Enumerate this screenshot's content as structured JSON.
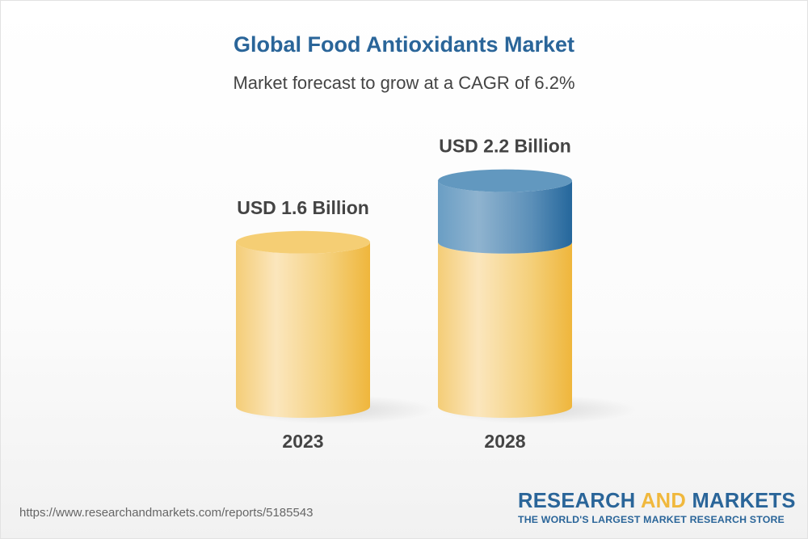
{
  "title": "Global Food Antioxidants Market",
  "subtitle": "Market forecast to grow at a CAGR of 6.2%",
  "chart_data": {
    "type": "bar",
    "style": "3d-cylinder",
    "categories": [
      "2023",
      "2028"
    ],
    "values": [
      1.6,
      2.2
    ],
    "data_labels": [
      "USD 1.6 Billion",
      "USD 2.2 Billion"
    ],
    "unit": "USD Billion",
    "colors": {
      "base": "#f3c862",
      "growth": "#2a6599"
    },
    "grid": false
  },
  "footer": {
    "url": "https://www.researchandmarkets.com/reports/5185543",
    "logo": {
      "part1": "RESEARCH ",
      "part2": "AND",
      "part3": " MARKETS",
      "tagline": "THE WORLD'S LARGEST MARKET RESEARCH STORE"
    }
  }
}
